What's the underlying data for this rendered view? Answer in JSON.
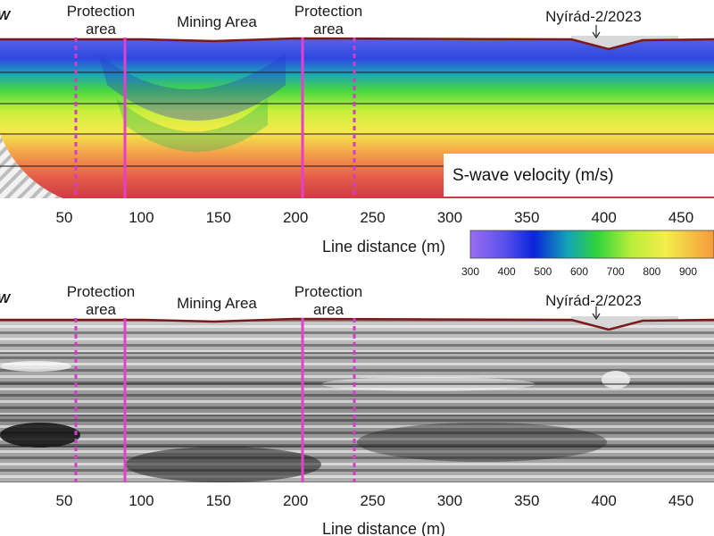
{
  "colors": {
    "profile_line": "#7a1a1a",
    "solid_boundary": "#e63fcf",
    "dashed_boundary": "#cf3fc6",
    "ground_fill": "#d8d8d8"
  },
  "panels": [
    {
      "id": "top",
      "type": "heatmap",
      "direction_label": "W",
      "annotations": {
        "protection_left": [
          "Protection",
          "area"
        ],
        "mining": "Mining Area",
        "protection_right": [
          "Protection",
          "area"
        ],
        "well": "Nyírád-2/2023"
      },
      "colorbar_title": "S-wave velocity (m/s)",
      "xlabel": "Line distance (m)"
    },
    {
      "id": "bottom",
      "type": "heatmap",
      "direction_label": "W",
      "annotations": {
        "protection_left": [
          "Protection",
          "area"
        ],
        "mining": "Mining Area",
        "protection_right": [
          "Protection",
          "area"
        ],
        "well": "Nyírád-2/2023"
      },
      "xlabel": "Line distance (m)"
    }
  ],
  "chart_data": {
    "type": "heatmap",
    "x_range": [
      20,
      480
    ],
    "x_ticks": [
      50,
      100,
      150,
      200,
      250,
      300,
      350,
      400,
      450
    ],
    "xlabel": "Line distance (m)",
    "boundaries": {
      "protection_left_dashed": 68,
      "mining_left_solid": 100,
      "mining_right_solid": 213,
      "protection_right_dashed": 245,
      "well": 400
    },
    "colorbar": {
      "title": "S-wave velocity (m/s)",
      "ticks": [
        300,
        400,
        500,
        600,
        700,
        800,
        900
      ],
      "range": [
        300,
        960
      ],
      "colors": [
        "#9a6cf2",
        "#3030ee",
        "#0a3ad0",
        "#11a9b4",
        "#2ed63a",
        "#b7ef3a",
        "#f4f04a",
        "#f7b54a",
        "#e4503e"
      ]
    },
    "velocity_layers_top_to_bottom": [
      350,
      480,
      650,
      760,
      880,
      950
    ]
  }
}
